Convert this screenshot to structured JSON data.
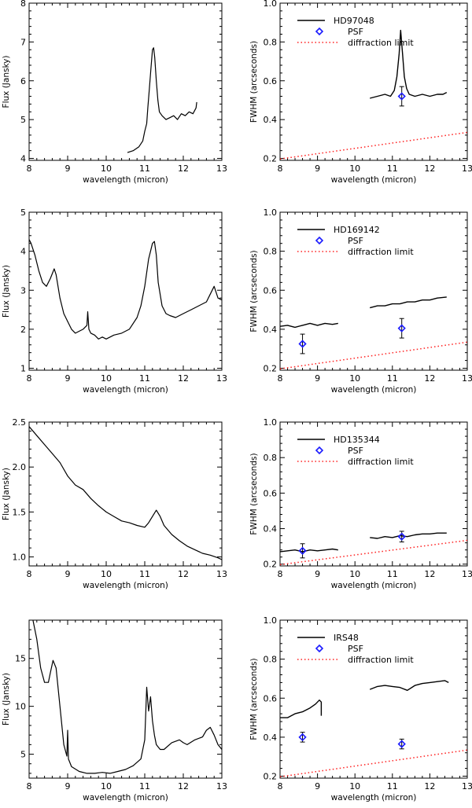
{
  "colors": {
    "psf": "#1a1aff",
    "diffraction": "#ff2020",
    "line": "#000000"
  },
  "chart_data": [
    {
      "type": "line",
      "panel": "flux",
      "row": 0,
      "xlabel": "wavelength (micron)",
      "ylabel": "Flux (Jansky)",
      "xlim": [
        8,
        13
      ],
      "ylim": [
        3.95,
        8
      ],
      "xticks": [
        8,
        9,
        10,
        11,
        12,
        13
      ],
      "yticks": [
        4,
        5,
        6,
        7,
        8
      ],
      "series": [
        {
          "x": [
            10.55,
            10.7,
            10.85,
            10.95,
            11.0,
            11.05,
            11.08,
            11.12,
            11.16,
            11.2,
            11.23,
            11.26,
            11.3,
            11.34,
            11.38,
            11.45,
            11.55,
            11.65,
            11.75,
            11.85,
            11.95,
            12.05,
            12.15,
            12.25,
            12.33,
            12.35
          ],
          "y": [
            4.15,
            4.2,
            4.3,
            4.45,
            4.7,
            4.9,
            5.3,
            5.8,
            6.3,
            6.8,
            6.85,
            6.6,
            6.0,
            5.5,
            5.2,
            5.1,
            5.0,
            5.05,
            5.1,
            5.0,
            5.15,
            5.1,
            5.2,
            5.15,
            5.3,
            5.45
          ]
        }
      ]
    },
    {
      "type": "line",
      "panel": "fwhm",
      "row": 0,
      "xlabel": "wavelength (micron)",
      "ylabel": "FWHM (arcseconds)",
      "xlim": [
        8,
        13
      ],
      "ylim": [
        0.19,
        1.0
      ],
      "xticks": [
        8,
        9,
        10,
        11,
        12,
        13
      ],
      "yticks": [
        0.2,
        0.4,
        0.6,
        0.8,
        1.0
      ],
      "legend": [
        "HD97048",
        "PSF",
        "diffraction limit"
      ],
      "series": [
        {
          "x": [
            10.4,
            10.6,
            10.8,
            10.95,
            11.05,
            11.12,
            11.18,
            11.22,
            11.27,
            11.32,
            11.38,
            11.45,
            11.6,
            11.8,
            12.0,
            12.2,
            12.35,
            12.45
          ],
          "y": [
            0.51,
            0.52,
            0.53,
            0.52,
            0.55,
            0.62,
            0.74,
            0.86,
            0.74,
            0.62,
            0.56,
            0.53,
            0.52,
            0.53,
            0.52,
            0.53,
            0.53,
            0.54
          ]
        }
      ],
      "psf": [
        {
          "x": 11.25,
          "y": 0.52,
          "err": 0.05
        }
      ],
      "diffraction_limit": [
        [
          8,
          0.197
        ],
        [
          13,
          0.334
        ]
      ]
    },
    {
      "type": "line",
      "panel": "flux",
      "row": 1,
      "xlabel": "wavelength (micron)",
      "ylabel": "Flux (Jansky)",
      "xlim": [
        8,
        13
      ],
      "ylim": [
        0.95,
        5
      ],
      "xticks": [
        8,
        9,
        10,
        11,
        12,
        13
      ],
      "yticks": [
        1,
        2,
        3,
        4,
        5
      ],
      "series": [
        {
          "x": [
            8.0,
            8.05,
            8.15,
            8.25,
            8.35,
            8.45,
            8.55,
            8.65,
            8.7,
            8.8,
            8.9,
            9.0,
            9.1,
            9.2,
            9.3,
            9.4,
            9.5,
            9.52,
            9.55,
            9.6,
            9.7,
            9.8,
            9.9,
            10.0,
            10.2,
            10.4,
            10.6,
            10.8,
            10.9,
            11.0,
            11.1,
            11.2,
            11.25,
            11.3,
            11.35,
            11.45,
            11.55,
            11.65,
            11.8,
            12.0,
            12.2,
            12.4,
            12.6,
            12.7,
            12.8,
            12.9,
            13.0
          ],
          "y": [
            4.3,
            4.2,
            3.9,
            3.5,
            3.2,
            3.1,
            3.3,
            3.55,
            3.4,
            2.8,
            2.4,
            2.2,
            2.0,
            1.9,
            1.95,
            2.0,
            2.1,
            2.45,
            2.0,
            1.9,
            1.85,
            1.75,
            1.8,
            1.75,
            1.85,
            1.9,
            2.0,
            2.3,
            2.6,
            3.1,
            3.8,
            4.2,
            4.25,
            3.9,
            3.2,
            2.6,
            2.4,
            2.35,
            2.3,
            2.4,
            2.5,
            2.6,
            2.7,
            2.9,
            3.1,
            2.8,
            2.75
          ]
        }
      ]
    },
    {
      "type": "line",
      "panel": "fwhm",
      "row": 1,
      "xlabel": "wavelength (micron)",
      "ylabel": "FWHM (arcseconds)",
      "xlim": [
        8,
        13
      ],
      "ylim": [
        0.19,
        1.0
      ],
      "xticks": [
        8,
        9,
        10,
        11,
        12,
        13
      ],
      "yticks": [
        0.2,
        0.4,
        0.6,
        0.8,
        1.0
      ],
      "legend": [
        "HD169142",
        "PSF",
        "diffraction limit"
      ],
      "series": [
        {
          "x": [
            8.0,
            8.2,
            8.4,
            8.6,
            8.8,
            9.0,
            9.2,
            9.4,
            9.55
          ],
          "y": [
            0.415,
            0.42,
            0.41,
            0.42,
            0.43,
            0.42,
            0.43,
            0.425,
            0.43
          ]
        },
        {
          "x": [
            10.4,
            10.6,
            10.8,
            11.0,
            11.2,
            11.4,
            11.6,
            11.8,
            12.0,
            12.2,
            12.45
          ],
          "y": [
            0.51,
            0.52,
            0.52,
            0.53,
            0.53,
            0.54,
            0.54,
            0.55,
            0.55,
            0.56,
            0.565
          ]
        }
      ],
      "psf": [
        {
          "x": 8.6,
          "y": 0.325,
          "err": 0.05
        },
        {
          "x": 11.25,
          "y": 0.405,
          "err": 0.05
        }
      ],
      "diffraction_limit": [
        [
          8,
          0.197
        ],
        [
          13,
          0.334
        ]
      ]
    },
    {
      "type": "line",
      "panel": "flux",
      "row": 2,
      "xlabel": "wavelength (micron)",
      "ylabel": "Flux (Jansky)",
      "xlim": [
        8,
        13
      ],
      "ylim": [
        0.9,
        2.5
      ],
      "xticks": [
        8,
        9,
        10,
        11,
        12,
        13
      ],
      "yticks": [
        1.0,
        1.5,
        2.0,
        2.5
      ],
      "series": [
        {
          "x": [
            8.0,
            8.2,
            8.4,
            8.6,
            8.8,
            9.0,
            9.2,
            9.4,
            9.6,
            9.8,
            10.0,
            10.2,
            10.4,
            10.6,
            10.8,
            11.0,
            11.1,
            11.2,
            11.3,
            11.4,
            11.5,
            11.7,
            11.9,
            12.1,
            12.3,
            12.5,
            12.7,
            12.9,
            13.0
          ],
          "y": [
            2.45,
            2.35,
            2.25,
            2.15,
            2.05,
            1.9,
            1.8,
            1.75,
            1.65,
            1.57,
            1.5,
            1.45,
            1.4,
            1.38,
            1.35,
            1.33,
            1.38,
            1.45,
            1.52,
            1.45,
            1.35,
            1.25,
            1.18,
            1.12,
            1.08,
            1.04,
            1.02,
            0.99,
            0.97
          ]
        }
      ]
    },
    {
      "type": "line",
      "panel": "fwhm",
      "row": 2,
      "xlabel": "wavelength (micron)",
      "ylabel": "FWHM (arcseconds)",
      "xlim": [
        8,
        13
      ],
      "ylim": [
        0.19,
        1.0
      ],
      "xticks": [
        8,
        9,
        10,
        11,
        12,
        13
      ],
      "yticks": [
        0.2,
        0.4,
        0.6,
        0.8,
        1.0
      ],
      "legend": [
        "HD135344",
        "PSF",
        "diffraction limit"
      ],
      "series": [
        {
          "x": [
            8.0,
            8.2,
            8.4,
            8.6,
            8.8,
            9.0,
            9.2,
            9.4,
            9.55
          ],
          "y": [
            0.27,
            0.275,
            0.28,
            0.27,
            0.28,
            0.275,
            0.28,
            0.285,
            0.28
          ]
        },
        {
          "x": [
            10.4,
            10.6,
            10.8,
            11.0,
            11.2,
            11.4,
            11.6,
            11.8,
            12.0,
            12.2,
            12.45
          ],
          "y": [
            0.35,
            0.345,
            0.355,
            0.35,
            0.36,
            0.355,
            0.365,
            0.37,
            0.37,
            0.375,
            0.375
          ]
        }
      ],
      "psf": [
        {
          "x": 8.6,
          "y": 0.275,
          "err": 0.04
        },
        {
          "x": 11.25,
          "y": 0.355,
          "err": 0.03
        }
      ],
      "diffraction_limit": [
        [
          8,
          0.197
        ],
        [
          13,
          0.334
        ]
      ]
    },
    {
      "type": "line",
      "panel": "flux",
      "row": 3,
      "xlabel": "wavelength (micron)",
      "ylabel": "Flux (Jansky)",
      "xlim": [
        8,
        13
      ],
      "ylim": [
        2.5,
        19
      ],
      "xticks": [
        8,
        9,
        10,
        11,
        12,
        13
      ],
      "yticks": [
        5,
        10,
        15
      ],
      "series": [
        {
          "x": [
            8.1,
            8.2,
            8.3,
            8.4,
            8.5,
            8.55,
            8.62,
            8.7,
            8.8,
            8.9,
            8.98,
            9.0,
            9.02,
            9.1,
            9.3,
            9.5,
            9.7,
            9.9,
            10.1,
            10.3,
            10.5,
            10.7,
            10.9,
            11.0,
            11.05,
            11.1,
            11.15,
            11.2,
            11.25,
            11.3,
            11.4,
            11.5,
            11.7,
            11.9,
            12.0,
            12.1,
            12.3,
            12.5,
            12.6,
            12.7,
            12.8,
            12.9,
            13.0
          ],
          "y": [
            19,
            17,
            14,
            12.5,
            12.5,
            13.5,
            14.8,
            14.0,
            10,
            6,
            4.8,
            7.5,
            4.5,
            3.7,
            3.2,
            3.0,
            3.0,
            3.1,
            3.0,
            3.2,
            3.4,
            3.8,
            4.5,
            6.5,
            12.0,
            9.5,
            11.0,
            8.5,
            7.0,
            6.0,
            5.5,
            5.5,
            6.2,
            6.5,
            6.2,
            6.0,
            6.5,
            6.8,
            7.5,
            7.8,
            7.0,
            6.0,
            5.5
          ]
        }
      ]
    },
    {
      "type": "line",
      "panel": "fwhm",
      "row": 3,
      "xlabel": "wavelength (micron)",
      "ylabel": "FWHM (arcseconds)",
      "xlim": [
        8,
        13
      ],
      "ylim": [
        0.19,
        1.0
      ],
      "xticks": [
        8,
        9,
        10,
        11,
        12,
        13
      ],
      "yticks": [
        0.2,
        0.4,
        0.6,
        0.8,
        1.0
      ],
      "legend": [
        "IRS48",
        "PSF",
        "diffraction limit"
      ],
      "series": [
        {
          "x": [
            8.0,
            8.2,
            8.4,
            8.6,
            8.8,
            8.95,
            9.05,
            9.1,
            9.1
          ],
          "y": [
            0.5,
            0.5,
            0.52,
            0.53,
            0.55,
            0.57,
            0.59,
            0.58,
            0.51
          ]
        },
        {
          "x": [
            10.4,
            10.6,
            10.8,
            11.0,
            11.2,
            11.4,
            11.6,
            11.8,
            12.0,
            12.2,
            12.4,
            12.5
          ],
          "y": [
            0.645,
            0.66,
            0.665,
            0.66,
            0.655,
            0.64,
            0.665,
            0.675,
            0.68,
            0.685,
            0.69,
            0.68
          ]
        }
      ],
      "psf": [
        {
          "x": 8.6,
          "y": 0.4,
          "err": 0.025
        },
        {
          "x": 11.25,
          "y": 0.365,
          "err": 0.025
        }
      ],
      "diffraction_limit": [
        [
          8,
          0.197
        ],
        [
          13,
          0.334
        ]
      ]
    }
  ]
}
